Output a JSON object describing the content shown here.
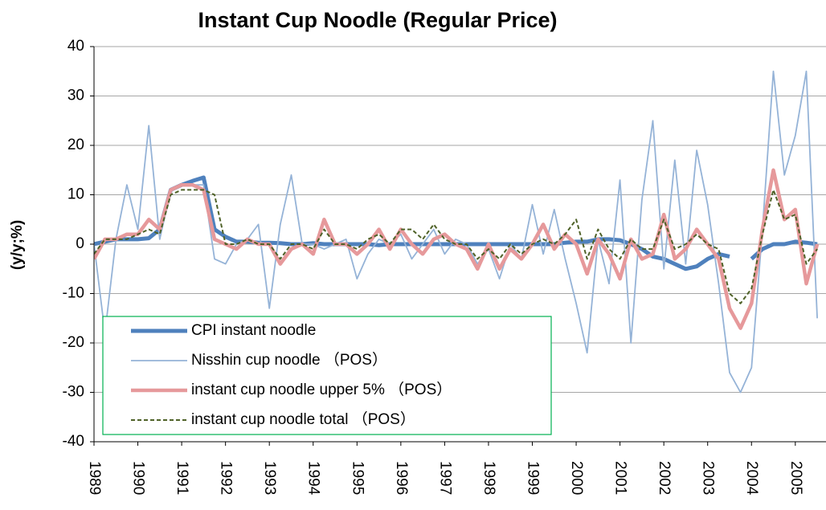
{
  "chart_data": {
    "type": "line",
    "title": "Instant Cup Noodle (Regular Price)",
    "y_label": "(y/y;%)",
    "x": [
      1989,
      1989.25,
      1989.5,
      1989.75,
      1990,
      1990.25,
      1990.5,
      1990.75,
      1991,
      1991.25,
      1991.5,
      1991.75,
      1992,
      1992.25,
      1992.5,
      1992.75,
      1993,
      1993.25,
      1993.5,
      1993.75,
      1994,
      1994.25,
      1994.5,
      1994.75,
      1995,
      1995.25,
      1995.5,
      1995.75,
      1996,
      1996.25,
      1996.5,
      1996.75,
      1997,
      1997.25,
      1997.5,
      1997.75,
      1998,
      1998.25,
      1998.5,
      1998.75,
      1999,
      1999.25,
      1999.5,
      1999.75,
      2000,
      2000.25,
      2000.5,
      2000.75,
      2001,
      2001.25,
      2001.5,
      2001.75,
      2002,
      2002.25,
      2002.5,
      2002.75,
      2003,
      2003.25,
      2003.5,
      2003.75,
      2004,
      2004.25,
      2004.5,
      2004.75,
      2005,
      2005.25,
      2005.5
    ],
    "xlim": [
      1989,
      2005.7
    ],
    "xticks": [
      1989,
      1990,
      1991,
      1992,
      1993,
      1994,
      1995,
      1996,
      1997,
      1998,
      1999,
      2000,
      2001,
      2002,
      2003,
      2004,
      2005
    ],
    "ylim": [
      -40,
      40
    ],
    "yticks": [
      -40,
      -30,
      -20,
      -10,
      0,
      10,
      20,
      30,
      40
    ],
    "grid": true,
    "series": [
      {
        "name": "CPI instant noodle",
        "color": "#4f81bd",
        "line_style": "solid",
        "values": [
          0,
          0.5,
          1,
          1,
          1,
          1.2,
          3,
          11,
          12,
          12.8,
          13.5,
          3,
          1.5,
          0.5,
          0.5,
          0.3,
          0.3,
          0.2,
          0,
          0,
          0.2,
          0,
          0,
          0,
          0,
          0,
          -0.2,
          0,
          0,
          0,
          0,
          0,
          0,
          0,
          0,
          0,
          0,
          0,
          0,
          0,
          0,
          0,
          0,
          0.3,
          0.5,
          0.5,
          1,
          1,
          0.8,
          0,
          -1,
          -2.5,
          -3,
          -4,
          -5,
          -4.5,
          -3,
          -2,
          -2.5,
          null,
          -3,
          -1,
          0,
          0,
          0.5,
          0.3,
          0
        ]
      },
      {
        "name": "Nisshin cup noodle （POS）",
        "color": "#95b3d7",
        "line_style": "solid",
        "values": [
          0,
          -18,
          1,
          12,
          3,
          24,
          1,
          11,
          12,
          12,
          12,
          -3,
          -4,
          0,
          1,
          4,
          -13,
          4,
          14,
          0,
          0,
          -1,
          0,
          1,
          -7,
          -2,
          1,
          0,
          2,
          -3,
          0,
          3,
          -2,
          1,
          0,
          -4,
          -1,
          -7,
          0,
          -3,
          8,
          -2,
          7,
          -3,
          -12,
          -22,
          1,
          -8,
          13,
          -20,
          9,
          25,
          -5,
          17,
          -4,
          19,
          8,
          -8,
          -26,
          -30,
          -25,
          3,
          35,
          14,
          22,
          35,
          -15
        ]
      },
      {
        "name": "instant cup noodle upper 5% （POS）",
        "color": "#e6999b",
        "line_style": "solid",
        "values": [
          -3,
          1,
          1,
          2,
          2,
          5,
          3,
          11,
          12,
          12,
          11,
          1,
          0,
          -1,
          1,
          0,
          0,
          -4,
          -1,
          0,
          -2,
          5,
          0,
          0,
          -2,
          0,
          3,
          -1,
          3,
          0,
          -2,
          1,
          2,
          0,
          -1,
          -5,
          0,
          -5,
          -1,
          -3,
          0,
          4,
          -1,
          2,
          0,
          -6,
          1,
          -2,
          -7,
          1,
          -3,
          -2,
          6,
          -3,
          -1,
          3,
          0,
          -3,
          -13,
          -17,
          -12,
          3,
          15,
          5,
          7,
          -8,
          0
        ]
      },
      {
        "name": "instant cup noodle total （POS）",
        "color": "#4f6228",
        "line_style": "dashed",
        "values": [
          -2,
          1,
          1,
          1,
          2,
          3,
          2,
          10,
          11,
          11,
          11,
          10,
          0,
          0,
          1,
          0,
          0,
          -3,
          0,
          0,
          -1,
          3,
          0,
          0,
          -1,
          1,
          2,
          0,
          3,
          3,
          1,
          4,
          1,
          0,
          0,
          -3,
          -1,
          -3,
          0,
          -2,
          0,
          1,
          0,
          2,
          5,
          -3,
          3,
          -1,
          -3,
          1,
          -1,
          -1,
          5,
          -1,
          0,
          2,
          0,
          -1,
          -10,
          -12,
          -9,
          2,
          11,
          5,
          6,
          -4,
          -1
        ]
      }
    ]
  }
}
